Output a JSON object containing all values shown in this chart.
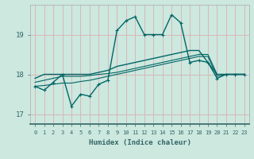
{
  "xlabel": "Humidex (Indice chaleur)",
  "bg_color": "#cce8df",
  "grid_color": "#d8b8b8",
  "line_color": "#006666",
  "axis_color": "#336666",
  "xlim": [
    -0.5,
    23.5
  ],
  "ylim": [
    16.75,
    19.75
  ],
  "yticks": [
    17,
    18,
    19
  ],
  "xticks": [
    0,
    1,
    2,
    3,
    4,
    5,
    6,
    7,
    8,
    9,
    10,
    11,
    12,
    13,
    14,
    15,
    16,
    17,
    18,
    19,
    20,
    21,
    22,
    23
  ],
  "series": {
    "main": [
      17.7,
      17.6,
      17.8,
      18.0,
      17.2,
      17.5,
      17.45,
      17.75,
      17.85,
      19.1,
      19.35,
      19.45,
      19.0,
      19.0,
      19.0,
      19.5,
      19.3,
      18.3,
      18.35,
      18.3,
      17.9,
      18.0,
      18.0,
      18.0
    ],
    "line2": [
      17.9,
      18.0,
      18.0,
      18.0,
      18.0,
      18.0,
      18.0,
      18.05,
      18.1,
      18.2,
      18.25,
      18.3,
      18.35,
      18.4,
      18.45,
      18.5,
      18.55,
      18.6,
      18.6,
      18.3,
      18.0,
      18.0,
      18.0,
      18.0
    ],
    "line3": [
      17.8,
      17.85,
      17.9,
      17.95,
      17.95,
      17.95,
      17.97,
      18.0,
      18.02,
      18.05,
      18.1,
      18.15,
      18.2,
      18.25,
      18.3,
      18.35,
      18.4,
      18.45,
      18.5,
      18.5,
      18.0,
      18.0,
      18.0,
      18.0
    ],
    "line4": [
      17.7,
      17.72,
      17.75,
      17.78,
      17.78,
      17.82,
      17.85,
      17.9,
      17.95,
      18.0,
      18.05,
      18.1,
      18.15,
      18.2,
      18.25,
      18.3,
      18.35,
      18.4,
      18.45,
      18.45,
      17.95,
      18.0,
      18.0,
      18.0
    ]
  }
}
